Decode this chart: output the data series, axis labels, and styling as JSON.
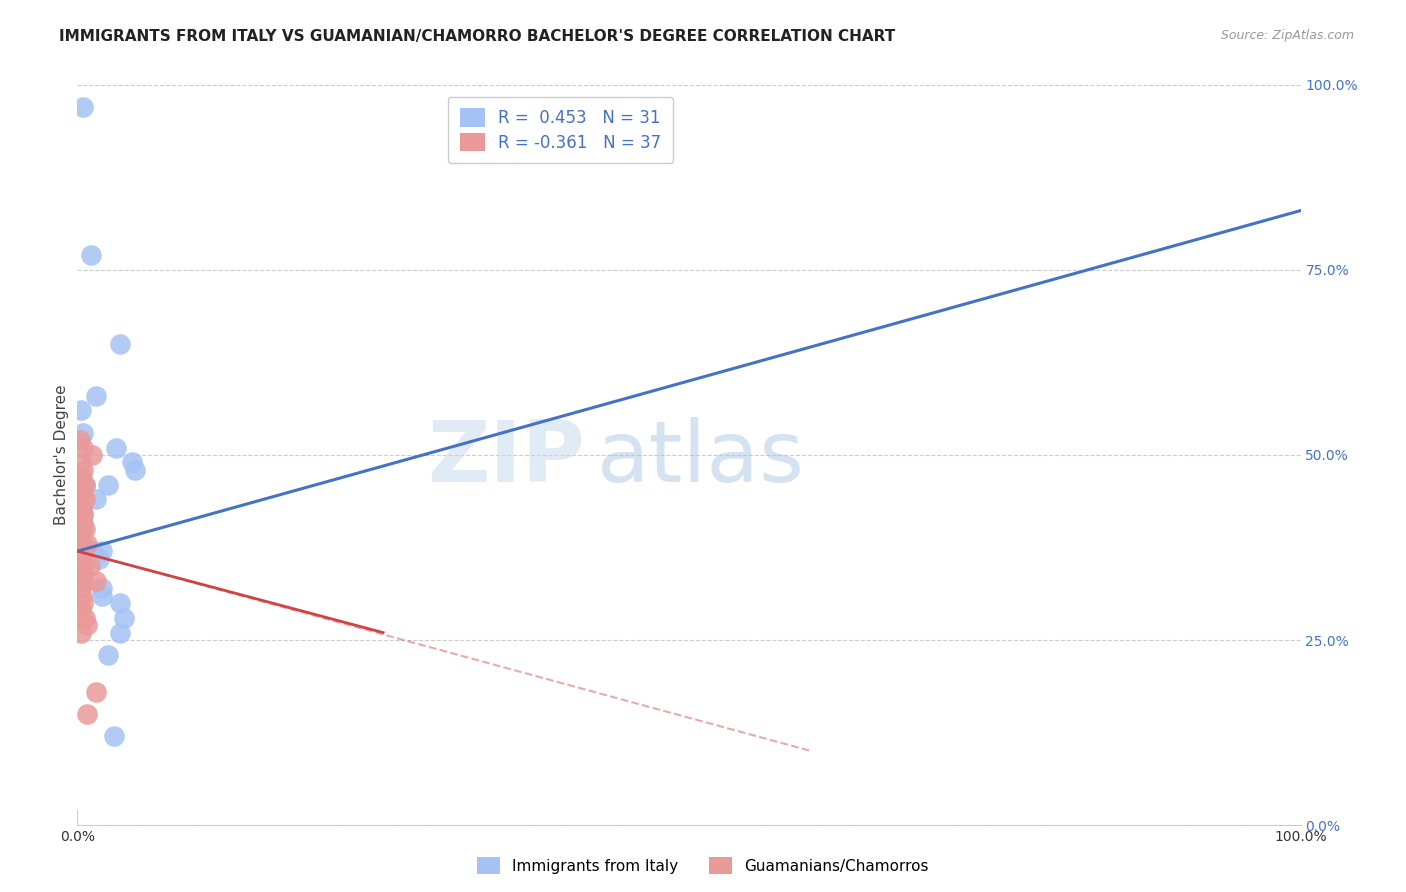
{
  "title": "IMMIGRANTS FROM ITALY VS GUAMANIAN/CHAMORRO BACHELOR'S DEGREE CORRELATION CHART",
  "source": "Source: ZipAtlas.com",
  "ylabel": "Bachelor's Degree",
  "xlim": [
    0,
    100
  ],
  "ylim": [
    0,
    100
  ],
  "ytick_labels": [
    "0.0%",
    "25.0%",
    "50.0%",
    "75.0%",
    "100.0%"
  ],
  "ytick_values": [
    0,
    25,
    50,
    75,
    100
  ],
  "xtick_labels": [
    "0.0%",
    "100.0%"
  ],
  "legend_label1": "Immigrants from Italy",
  "legend_label2": "Guamanians/Chamorros",
  "legend_r1": "R =  0.453",
  "legend_n1": "N = 31",
  "legend_r2": "R = -0.361",
  "legend_n2": "N = 37",
  "blue_color": "#a4c2f4",
  "pink_color": "#ea9999",
  "line_blue": "#4472c4",
  "line_pink": "#cc4444",
  "watermark": "ZIPatlas",
  "blue_dots": [
    [
      0.5,
      97
    ],
    [
      1.1,
      77
    ],
    [
      3.5,
      65
    ],
    [
      1.5,
      58
    ],
    [
      0.3,
      56
    ],
    [
      0.5,
      53
    ],
    [
      3.2,
      51
    ],
    [
      4.5,
      49
    ],
    [
      4.7,
      48
    ],
    [
      0.4,
      47
    ],
    [
      0.6,
      46
    ],
    [
      2.5,
      46
    ],
    [
      0.3,
      45
    ],
    [
      1.5,
      44
    ],
    [
      0.4,
      43
    ],
    [
      0.3,
      43
    ],
    [
      0.5,
      42
    ],
    [
      0.3,
      42
    ],
    [
      0.5,
      41
    ],
    [
      0.4,
      38
    ],
    [
      1.2,
      37
    ],
    [
      2.0,
      37
    ],
    [
      1.8,
      36
    ],
    [
      0.4,
      34
    ],
    [
      2.0,
      32
    ],
    [
      2.0,
      31
    ],
    [
      3.5,
      30
    ],
    [
      3.8,
      28
    ],
    [
      3.5,
      26
    ],
    [
      2.5,
      23
    ],
    [
      3.0,
      12
    ]
  ],
  "pink_dots": [
    [
      0.2,
      52
    ],
    [
      0.5,
      51
    ],
    [
      1.2,
      50
    ],
    [
      0.3,
      49
    ],
    [
      0.5,
      48
    ],
    [
      0.3,
      47
    ],
    [
      0.6,
      46
    ],
    [
      0.4,
      45
    ],
    [
      0.6,
      44
    ],
    [
      0.3,
      44
    ],
    [
      0.4,
      43
    ],
    [
      0.4,
      42
    ],
    [
      0.5,
      42
    ],
    [
      0.3,
      42
    ],
    [
      0.4,
      41
    ],
    [
      0.4,
      41
    ],
    [
      0.6,
      40
    ],
    [
      0.3,
      40
    ],
    [
      0.4,
      40
    ],
    [
      0.3,
      39
    ],
    [
      0.8,
      38
    ],
    [
      0.5,
      37
    ],
    [
      0.3,
      36
    ],
    [
      0.5,
      35
    ],
    [
      1.0,
      35
    ],
    [
      0.4,
      34
    ],
    [
      0.5,
      33
    ],
    [
      1.5,
      33
    ],
    [
      0.3,
      32
    ],
    [
      0.4,
      31
    ],
    [
      0.5,
      30
    ],
    [
      0.3,
      29
    ],
    [
      0.6,
      28
    ],
    [
      0.8,
      27
    ],
    [
      0.3,
      26
    ],
    [
      1.5,
      18
    ],
    [
      0.8,
      15
    ]
  ],
  "blue_line_x0": 0,
  "blue_line_x1": 100,
  "blue_line_y0": 37,
  "blue_line_y1": 83,
  "pink_line_solid_x0": 0,
  "pink_line_solid_x1": 25,
  "pink_line_solid_y0": 37,
  "pink_line_solid_y1": 26,
  "pink_line_dash_x0": 0,
  "pink_line_dash_x1": 60,
  "pink_line_dash_y0": 37,
  "pink_line_dash_y1": 10,
  "title_fontsize": 11,
  "source_fontsize": 9,
  "axis_label_fontsize": 11,
  "tick_fontsize": 10,
  "legend_fontsize": 11
}
